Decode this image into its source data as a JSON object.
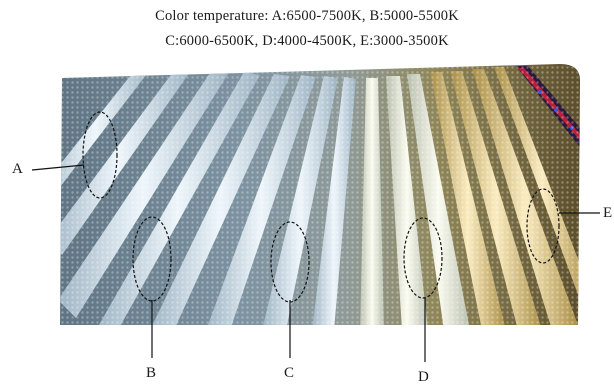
{
  "caption": {
    "line1": "Color temperature:  A:6500-7500K, B:5000-5500K",
    "line2": "C:6000-6500K,  D:4000-4500K,   E:3000-3500K"
  },
  "labels": {
    "a": "A",
    "b": "B",
    "c": "C",
    "d": "D",
    "e": "E"
  },
  "colors": {
    "cool_white": "#cfe0ea",
    "neutral_white": "#e9ecdc",
    "warm_white": "#e7cf8c",
    "accent_red": "#c8203a",
    "accent_blue": "#3a54d8"
  }
}
